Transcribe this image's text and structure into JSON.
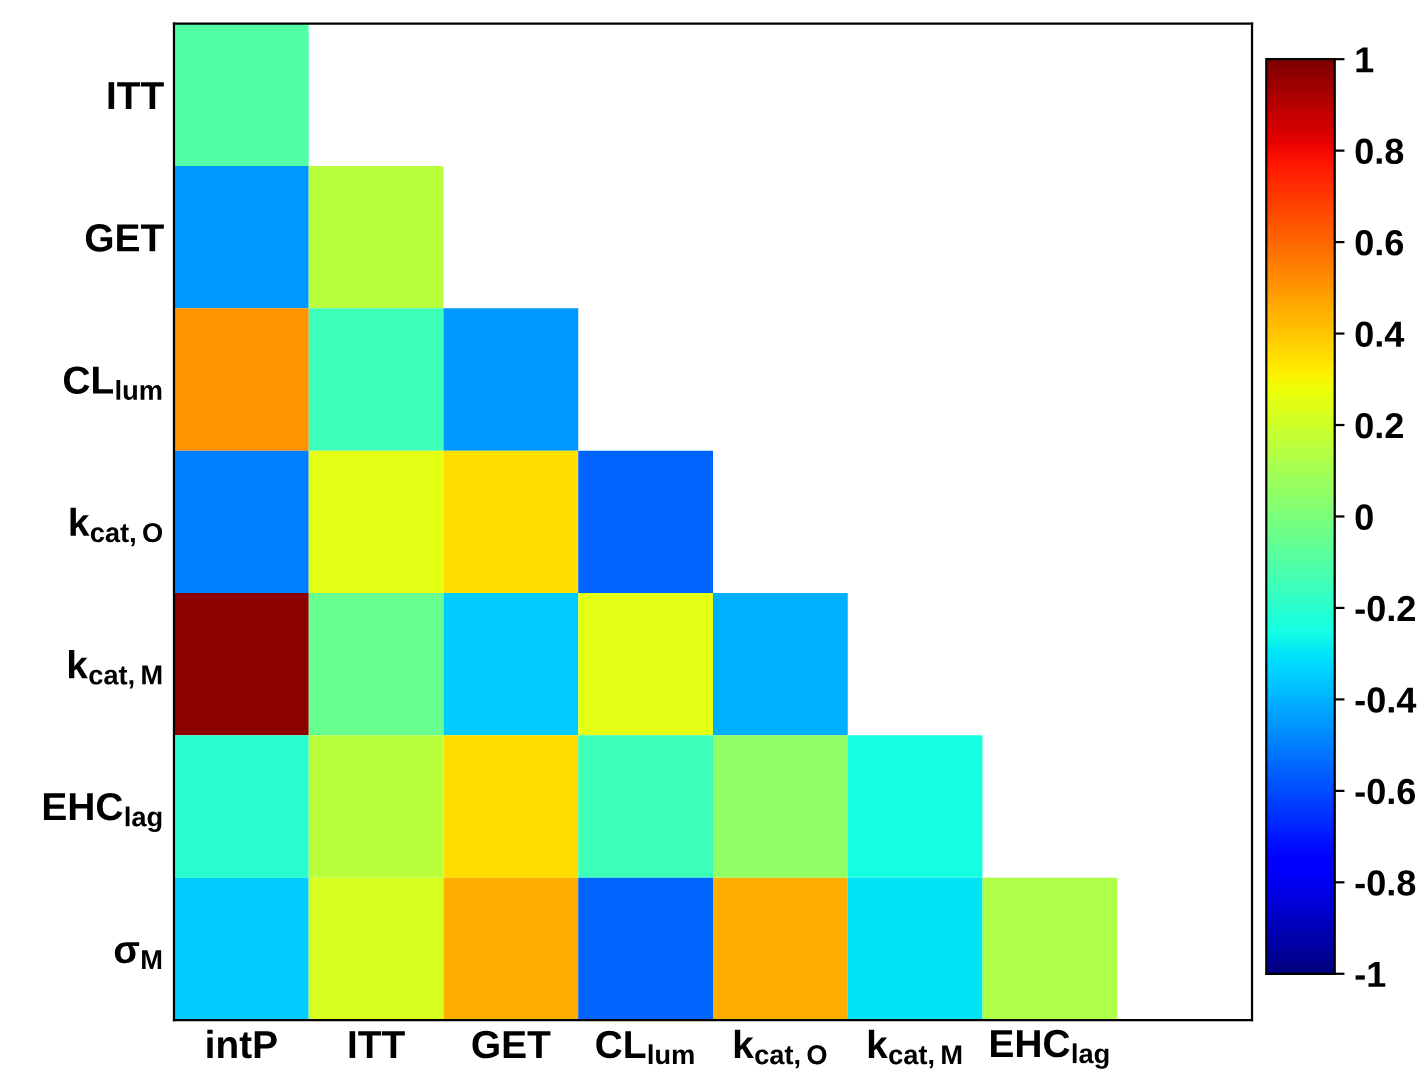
{
  "chart_data": {
    "type": "heatmap",
    "categories": [
      "intP",
      "ITT",
      "GET",
      "CL$_{lum}$",
      "k$_{cat,O}$",
      "k$_{cat,M}$",
      "EHC$_{lag}$",
      null
    ],
    "y_categories": [
      "ITT",
      "GET",
      "CL$_{lum}$",
      "k$_{cat,O}$",
      "k$_{cat,M}$",
      "EHC$_{lag}$",
      "σ$_{M}$"
    ],
    "cells": [
      [
        -0.1,
        null,
        null,
        null,
        null,
        null,
        null,
        null
      ],
      [
        -0.45,
        0.15,
        null,
        null,
        null,
        null,
        null,
        null
      ],
      [
        0.5,
        -0.15,
        -0.45,
        null,
        null,
        null,
        null,
        null
      ],
      [
        -0.5,
        0.25,
        0.35,
        -0.55,
        null,
        null,
        null,
        null
      ],
      [
        0.97,
        -0.05,
        -0.35,
        0.25,
        -0.4,
        null,
        null,
        null
      ],
      [
        -0.2,
        0.15,
        0.35,
        -0.15,
        0.05,
        -0.25,
        null,
        null
      ],
      [
        -0.35,
        0.22,
        0.45,
        -0.55,
        0.45,
        -0.3,
        0.12,
        null
      ]
    ],
    "clim": [
      -1,
      1
    ],
    "cticks": [
      -1,
      -0.8,
      -0.6,
      -0.4,
      -0.2,
      0,
      0.2,
      0.4,
      0.6,
      0.8,
      1
    ]
  }
}
